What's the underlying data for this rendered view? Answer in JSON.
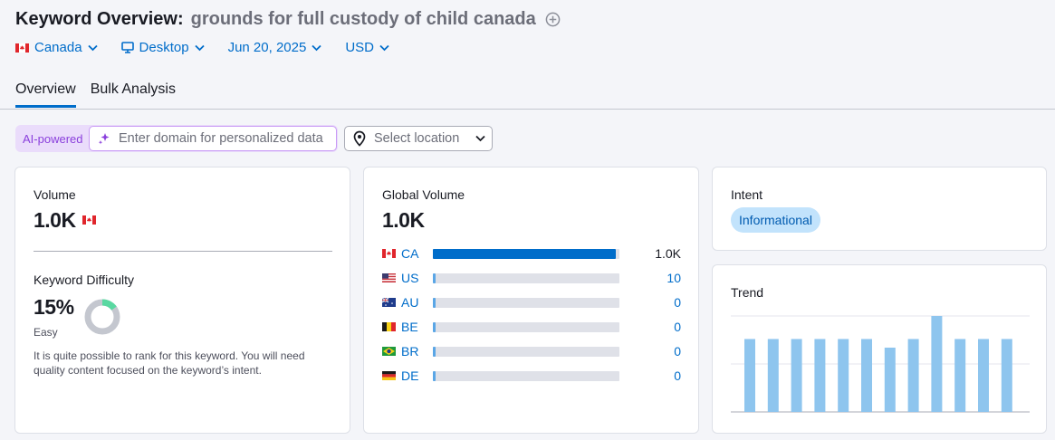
{
  "header": {
    "title": "Keyword Overview:",
    "keyword": "grounds for full custody of child canada"
  },
  "filters": {
    "country": "Canada",
    "device": "Desktop",
    "date": "Jun 20, 2025",
    "currency": "USD"
  },
  "tabs": [
    {
      "label": "Overview",
      "active": true
    },
    {
      "label": "Bulk Analysis",
      "active": false
    }
  ],
  "ai": {
    "badge": "AI-powered",
    "placeholder": "Enter domain for personalized data",
    "location_placeholder": "Select location"
  },
  "volume": {
    "label": "Volume",
    "value": "1.0K"
  },
  "difficulty": {
    "label": "Keyword Difficulty",
    "value": "15%",
    "level": "Easy",
    "percent": 15,
    "description": "It is quite possible to rank for this keyword. You will need quality content focused on the keyword’s intent."
  },
  "global_volume": {
    "label": "Global Volume",
    "value": "1.0K",
    "rows": [
      {
        "code": "CA",
        "value": "1.0K",
        "share": 1.0
      },
      {
        "code": "US",
        "value": "10",
        "share": 0.01
      },
      {
        "code": "AU",
        "value": "0",
        "share": 0.01
      },
      {
        "code": "BE",
        "value": "0",
        "share": 0.01
      },
      {
        "code": "BR",
        "value": "0",
        "share": 0.01
      },
      {
        "code": "DE",
        "value": "0",
        "share": 0.01
      }
    ]
  },
  "intent": {
    "label": "Intent",
    "badge": "Informational"
  },
  "trend": {
    "label": "Trend"
  },
  "chart_data": {
    "type": "bar",
    "values": [
      0.76,
      0.76,
      0.76,
      0.76,
      0.76,
      0.76,
      0.67,
      0.76,
      1.0,
      0.76,
      0.76,
      0.76
    ],
    "ylim": [
      0,
      1
    ],
    "grid": true
  },
  "colors": {
    "accent": "#006dca",
    "trend_bar": "#8ec5ee",
    "donut_fill": "#59d8a1",
    "donut_track": "#c4c7cf",
    "ai_purple": "#8a3fdc"
  }
}
